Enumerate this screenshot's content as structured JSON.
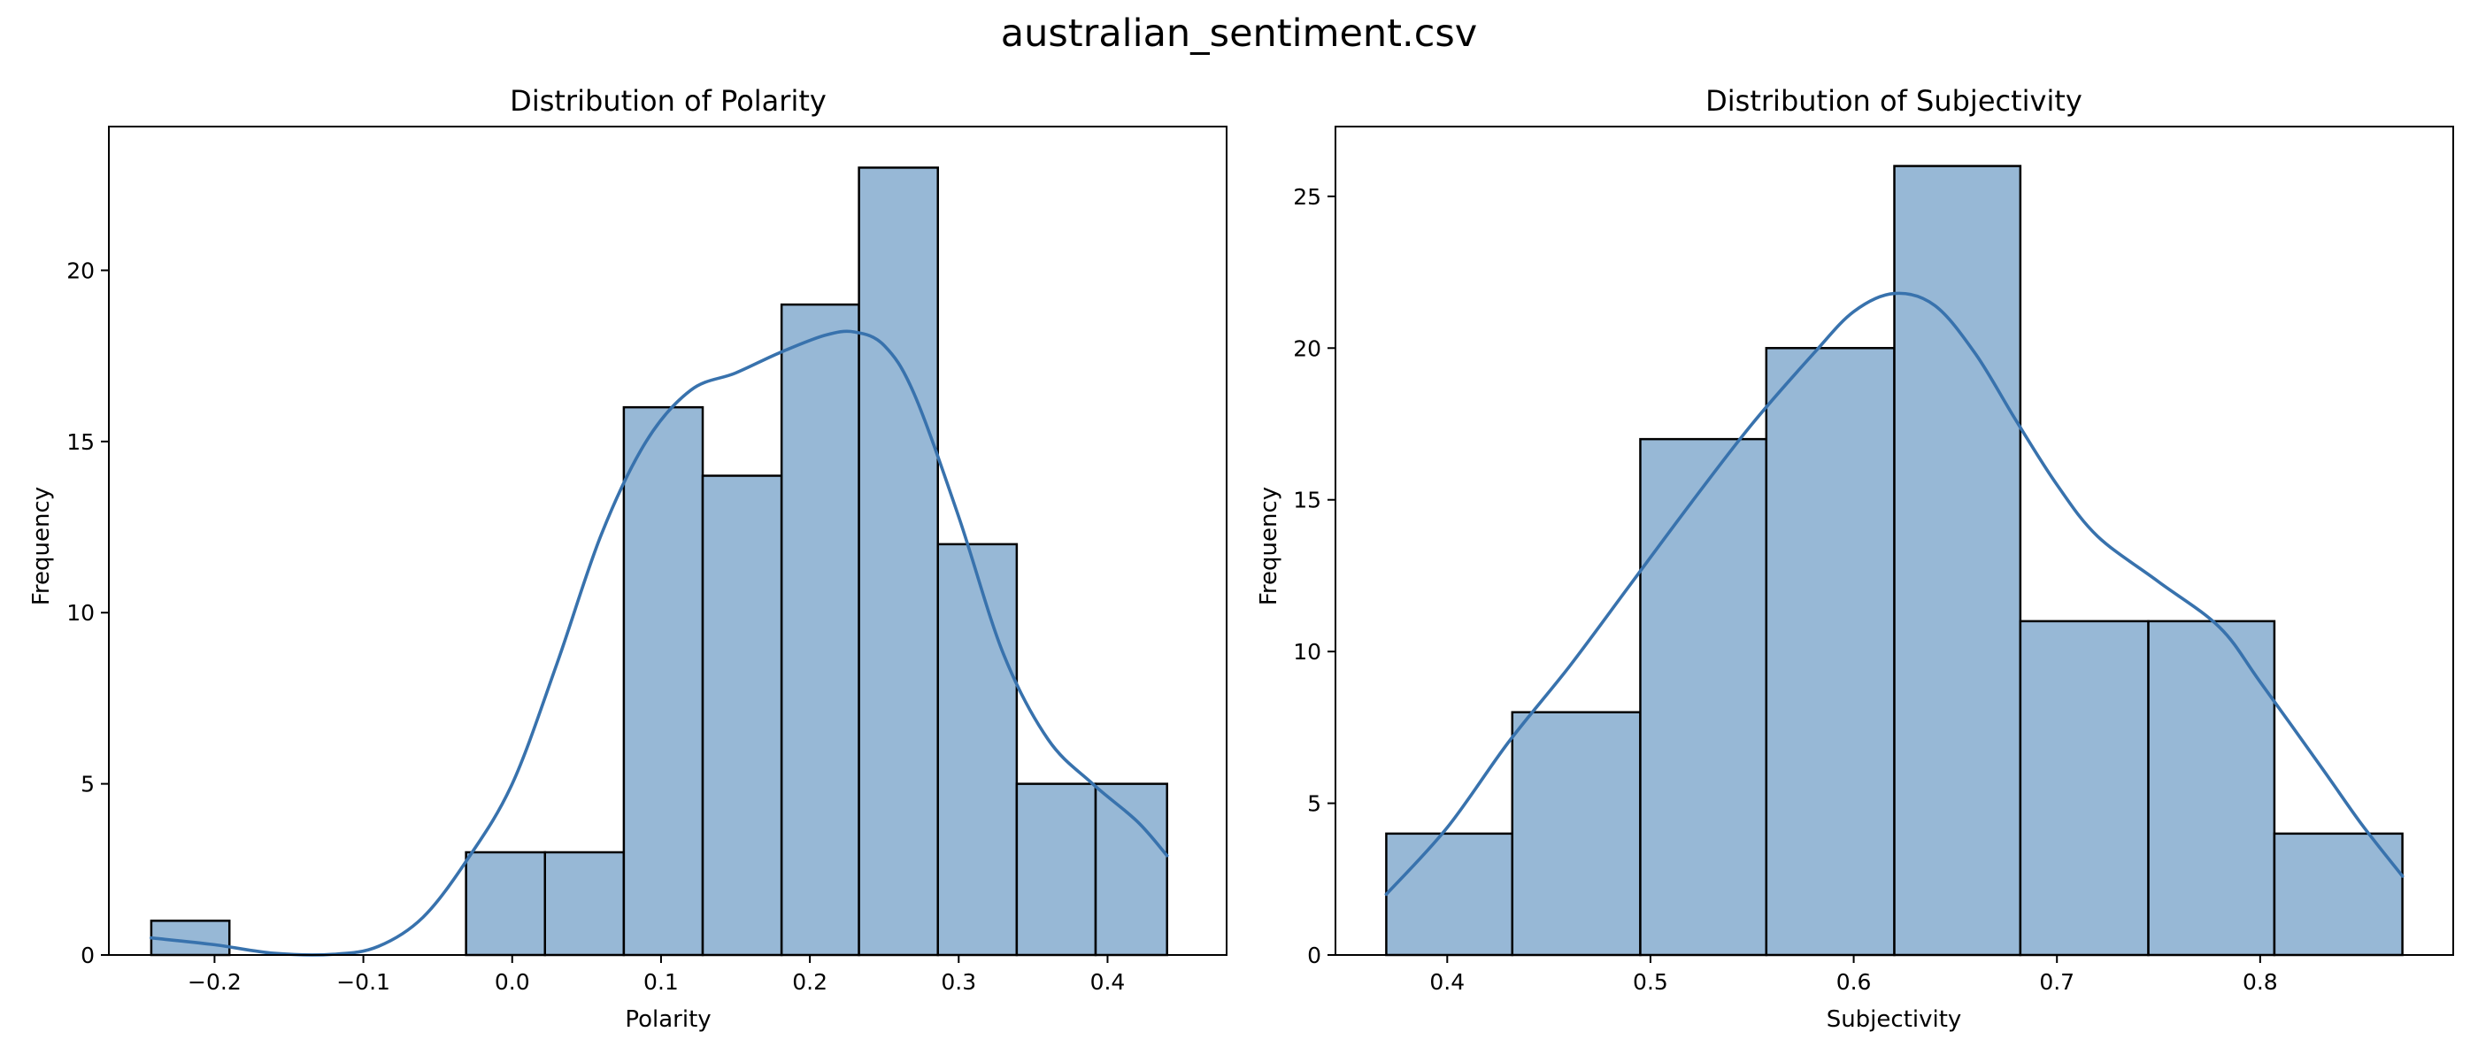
{
  "figure": {
    "title": "australian_sentiment.csv"
  },
  "chart_data": [
    {
      "type": "bar",
      "subtype": "histogram_with_kde",
      "title": "Distribution of Polarity",
      "xlabel": "Polarity",
      "ylabel": "Frequency",
      "xlim": [
        -0.271,
        0.48
      ],
      "ylim": [
        0,
        24.2
      ],
      "grid": false,
      "bar_color": "#97b8d6",
      "kde_color": "#3872ad",
      "bin_edges": [
        -0.2425,
        -0.19,
        -0.137,
        -0.084,
        -0.031,
        0.022,
        0.075,
        0.128,
        0.181,
        0.233,
        0.286,
        0.339,
        0.392,
        0.44
      ],
      "values": [
        1,
        0,
        0,
        0,
        3,
        3,
        16,
        14,
        19,
        23,
        12,
        5,
        5
      ],
      "kde": {
        "x": [
          -0.2425,
          -0.2,
          -0.16,
          -0.12,
          -0.09,
          -0.06,
          -0.03,
          0.0,
          0.03,
          0.06,
          0.09,
          0.12,
          0.15,
          0.18,
          0.21,
          0.23,
          0.25,
          0.27,
          0.3,
          0.33,
          0.36,
          0.39,
          0.42,
          0.44
        ],
        "y": [
          0.5,
          0.3,
          0.05,
          0.02,
          0.25,
          1.1,
          2.8,
          5.0,
          8.5,
          12.3,
          15.0,
          16.5,
          17.0,
          17.6,
          18.1,
          18.2,
          17.8,
          16.4,
          12.8,
          8.8,
          6.3,
          5.0,
          3.9,
          2.9
        ]
      },
      "xticks": [
        "−0.2",
        "−0.1",
        "0.0",
        "0.1",
        "0.2",
        "0.3",
        "0.4"
      ],
      "xtick_values": [
        -0.2,
        -0.1,
        0.0,
        0.1,
        0.2,
        0.3,
        0.4
      ],
      "yticks": [
        "0",
        "5",
        "10",
        "15",
        "20"
      ],
      "ytick_values": [
        0,
        5,
        10,
        15,
        20
      ]
    },
    {
      "type": "bar",
      "subtype": "histogram_with_kde",
      "title": "Distribution of Subjectivity",
      "xlabel": "Subjectivity",
      "ylabel": "Frequency",
      "xlim": [
        0.345,
        0.895
      ],
      "ylim": [
        0,
        27.3
      ],
      "grid": false,
      "bar_color": "#97b8d6",
      "kde_color": "#3872ad",
      "bin_edges": [
        0.37,
        0.432,
        0.495,
        0.557,
        0.62,
        0.682,
        0.745,
        0.807,
        0.87
      ],
      "values": [
        4,
        8,
        17,
        20,
        26,
        11,
        11,
        4
      ],
      "kde": {
        "x": [
          0.37,
          0.4,
          0.43,
          0.46,
          0.49,
          0.52,
          0.55,
          0.58,
          0.6,
          0.62,
          0.64,
          0.66,
          0.68,
          0.7,
          0.72,
          0.75,
          0.78,
          0.8,
          0.83,
          0.85,
          0.87
        ],
        "y": [
          2.0,
          4.2,
          7.0,
          9.5,
          12.2,
          14.9,
          17.5,
          19.8,
          21.2,
          21.8,
          21.4,
          19.8,
          17.6,
          15.5,
          13.8,
          12.3,
          10.8,
          9.0,
          6.2,
          4.3,
          2.6
        ]
      },
      "xticks": [
        "0.4",
        "0.5",
        "0.6",
        "0.7",
        "0.8"
      ],
      "xtick_values": [
        0.4,
        0.5,
        0.6,
        0.7,
        0.8
      ],
      "yticks": [
        "0",
        "5",
        "10",
        "15",
        "20",
        "25"
      ],
      "ytick_values": [
        0,
        5,
        10,
        15,
        20,
        25
      ]
    }
  ]
}
